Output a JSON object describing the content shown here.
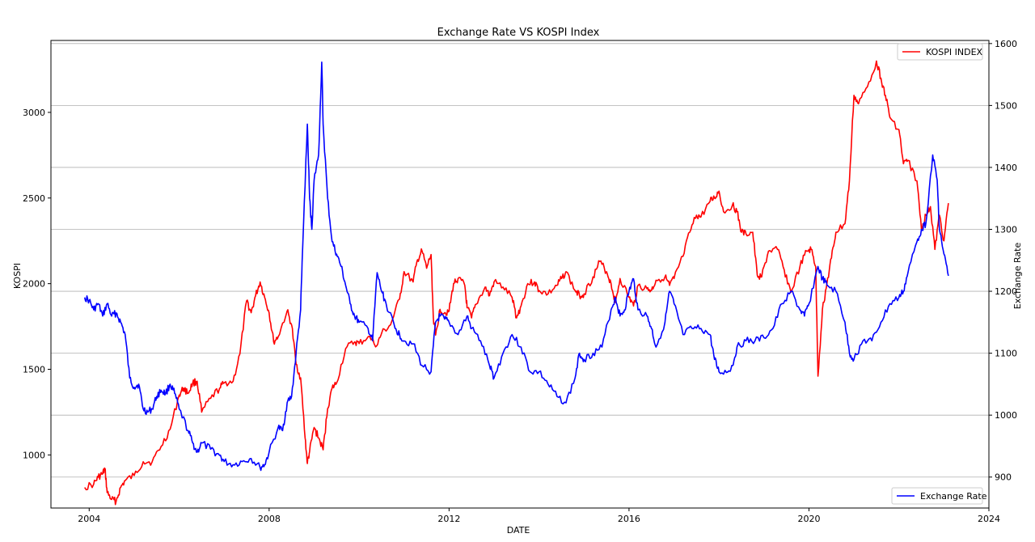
{
  "chart_data": {
    "type": "line",
    "title": "Exchange Rate VS KOSPI Index",
    "xlabel": "DATE",
    "ylabel_left": "KOSPI",
    "ylabel_right": "Exchange Rate",
    "xlim": [
      2003.15,
      2024.0
    ],
    "ylim_left": [
      690,
      3420
    ],
    "ylim_right": [
      850,
      1605
    ],
    "x_ticks": [
      "2004",
      "2008",
      "2012",
      "2016",
      "2020",
      "2024"
    ],
    "y_left_ticks": [
      "1000",
      "1500",
      "2000",
      "2500",
      "3000"
    ],
    "y_right_ticks": [
      "900",
      "1000",
      "1100",
      "1200",
      "1300",
      "1400",
      "1500",
      "1600"
    ],
    "grid": "horizontal lines at right-axis ticks",
    "colors": {
      "kospi": "#ff0000",
      "exchange": "#0000ff"
    },
    "series": [
      {
        "name": "KOSPI INDEX",
        "axis": "left",
        "color": "#ff0000",
        "legend_position": "top-right",
        "points": [
          [
            2003.9,
            810
          ],
          [
            2004.1,
            830
          ],
          [
            2004.2,
            870
          ],
          [
            2004.3,
            890
          ],
          [
            2004.35,
            920
          ],
          [
            2004.4,
            780
          ],
          [
            2004.5,
            740
          ],
          [
            2004.6,
            730
          ],
          [
            2004.7,
            810
          ],
          [
            2004.8,
            850
          ],
          [
            2005.0,
            880
          ],
          [
            2005.2,
            960
          ],
          [
            2005.4,
            960
          ],
          [
            2005.6,
            1050
          ],
          [
            2005.8,
            1150
          ],
          [
            2006.0,
            1350
          ],
          [
            2006.1,
            1390
          ],
          [
            2006.2,
            1360
          ],
          [
            2006.3,
            1420
          ],
          [
            2006.4,
            1430
          ],
          [
            2006.5,
            1250
          ],
          [
            2006.7,
            1330
          ],
          [
            2006.9,
            1390
          ],
          [
            2007.0,
            1420
          ],
          [
            2007.2,
            1430
          ],
          [
            2007.35,
            1590
          ],
          [
            2007.5,
            1900
          ],
          [
            2007.6,
            1830
          ],
          [
            2007.7,
            1930
          ],
          [
            2007.8,
            2010
          ],
          [
            2007.9,
            1920
          ],
          [
            2008.0,
            1830
          ],
          [
            2008.1,
            1660
          ],
          [
            2008.2,
            1690
          ],
          [
            2008.4,
            1840
          ],
          [
            2008.5,
            1760
          ],
          [
            2008.6,
            1530
          ],
          [
            2008.7,
            1450
          ],
          [
            2008.8,
            1100
          ],
          [
            2008.85,
            950
          ],
          [
            2008.9,
            1020
          ],
          [
            2009.0,
            1160
          ],
          [
            2009.1,
            1100
          ],
          [
            2009.2,
            1030
          ],
          [
            2009.3,
            1270
          ],
          [
            2009.4,
            1390
          ],
          [
            2009.5,
            1420
          ],
          [
            2009.7,
            1620
          ],
          [
            2009.9,
            1660
          ],
          [
            2010.0,
            1650
          ],
          [
            2010.2,
            1690
          ],
          [
            2010.4,
            1640
          ],
          [
            2010.5,
            1710
          ],
          [
            2010.7,
            1760
          ],
          [
            2010.9,
            1910
          ],
          [
            2011.0,
            2070
          ],
          [
            2011.2,
            2010
          ],
          [
            2011.3,
            2140
          ],
          [
            2011.4,
            2190
          ],
          [
            2011.5,
            2090
          ],
          [
            2011.6,
            2170
          ],
          [
            2011.65,
            1800
          ],
          [
            2011.7,
            1700
          ],
          [
            2011.8,
            1850
          ],
          [
            2011.9,
            1830
          ],
          [
            2012.0,
            1840
          ],
          [
            2012.1,
            2000
          ],
          [
            2012.2,
            2030
          ],
          [
            2012.35,
            1990
          ],
          [
            2012.4,
            1860
          ],
          [
            2012.5,
            1800
          ],
          [
            2012.6,
            1880
          ],
          [
            2012.8,
            1980
          ],
          [
            2012.9,
            1930
          ],
          [
            2013.0,
            2010
          ],
          [
            2013.2,
            1980
          ],
          [
            2013.4,
            1920
          ],
          [
            2013.5,
            1800
          ],
          [
            2013.6,
            1870
          ],
          [
            2013.75,
            2000
          ],
          [
            2013.9,
            2010
          ],
          [
            2014.0,
            1960
          ],
          [
            2014.2,
            1940
          ],
          [
            2014.4,
            1990
          ],
          [
            2014.5,
            2030
          ],
          [
            2014.6,
            2070
          ],
          [
            2014.8,
            1960
          ],
          [
            2014.9,
            1930
          ],
          [
            2015.0,
            1940
          ],
          [
            2015.2,
            2040
          ],
          [
            2015.35,
            2130
          ],
          [
            2015.5,
            2070
          ],
          [
            2015.6,
            2000
          ],
          [
            2015.7,
            1890
          ],
          [
            2015.8,
            2030
          ],
          [
            2016.0,
            1920
          ],
          [
            2016.1,
            1870
          ],
          [
            2016.2,
            1990
          ],
          [
            2016.4,
            1970
          ],
          [
            2016.5,
            1960
          ],
          [
            2016.6,
            2020
          ],
          [
            2016.8,
            2040
          ],
          [
            2016.9,
            1990
          ],
          [
            2017.0,
            2030
          ],
          [
            2017.2,
            2160
          ],
          [
            2017.35,
            2300
          ],
          [
            2017.5,
            2400
          ],
          [
            2017.6,
            2390
          ],
          [
            2017.8,
            2480
          ],
          [
            2017.9,
            2500
          ],
          [
            2018.0,
            2540
          ],
          [
            2018.1,
            2420
          ],
          [
            2018.3,
            2460
          ],
          [
            2018.4,
            2420
          ],
          [
            2018.5,
            2300
          ],
          [
            2018.6,
            2290
          ],
          [
            2018.75,
            2300
          ],
          [
            2018.85,
            2050
          ],
          [
            2018.95,
            2040
          ],
          [
            2019.1,
            2190
          ],
          [
            2019.3,
            2200
          ],
          [
            2019.45,
            2080
          ],
          [
            2019.6,
            1950
          ],
          [
            2019.8,
            2100
          ],
          [
            2019.95,
            2190
          ],
          [
            2020.05,
            2200
          ],
          [
            2020.15,
            2100
          ],
          [
            2020.2,
            1460
          ],
          [
            2020.3,
            1850
          ],
          [
            2020.4,
            2000
          ],
          [
            2020.5,
            2150
          ],
          [
            2020.6,
            2300
          ],
          [
            2020.8,
            2350
          ],
          [
            2020.9,
            2600
          ],
          [
            2021.0,
            3100
          ],
          [
            2021.1,
            3050
          ],
          [
            2021.3,
            3150
          ],
          [
            2021.5,
            3300
          ],
          [
            2021.6,
            3200
          ],
          [
            2021.7,
            3100
          ],
          [
            2021.8,
            2970
          ],
          [
            2022.0,
            2900
          ],
          [
            2022.1,
            2700
          ],
          [
            2022.2,
            2720
          ],
          [
            2022.4,
            2600
          ],
          [
            2022.5,
            2320
          ],
          [
            2022.6,
            2400
          ],
          [
            2022.7,
            2450
          ],
          [
            2022.8,
            2200
          ],
          [
            2022.9,
            2400
          ],
          [
            2023.0,
            2250
          ],
          [
            2023.1,
            2470
          ]
        ]
      },
      {
        "name": "Exchange Rate",
        "axis": "right",
        "color": "#0000ff",
        "legend_position": "bottom-right",
        "points": [
          [
            2003.9,
            1190
          ],
          [
            2004.0,
            1185
          ],
          [
            2004.1,
            1170
          ],
          [
            2004.2,
            1180
          ],
          [
            2004.3,
            1160
          ],
          [
            2004.4,
            1180
          ],
          [
            2004.5,
            1160
          ],
          [
            2004.6,
            1165
          ],
          [
            2004.7,
            1150
          ],
          [
            2004.8,
            1130
          ],
          [
            2004.9,
            1060
          ],
          [
            2005.0,
            1045
          ],
          [
            2005.1,
            1050
          ],
          [
            2005.2,
            1010
          ],
          [
            2005.3,
            1005
          ],
          [
            2005.4,
            1010
          ],
          [
            2005.5,
            1030
          ],
          [
            2005.6,
            1040
          ],
          [
            2005.7,
            1035
          ],
          [
            2005.8,
            1050
          ],
          [
            2005.9,
            1035
          ],
          [
            2006.0,
            1010
          ],
          [
            2006.2,
            975
          ],
          [
            2006.3,
            955
          ],
          [
            2006.4,
            940
          ],
          [
            2006.5,
            955
          ],
          [
            2006.7,
            945
          ],
          [
            2006.9,
            935
          ],
          [
            2007.0,
            925
          ],
          [
            2007.2,
            920
          ],
          [
            2007.4,
            925
          ],
          [
            2007.6,
            930
          ],
          [
            2007.8,
            915
          ],
          [
            2007.9,
            920
          ],
          [
            2008.0,
            940
          ],
          [
            2008.2,
            980
          ],
          [
            2008.3,
            975
          ],
          [
            2008.4,
            1020
          ],
          [
            2008.5,
            1030
          ],
          [
            2008.6,
            1100
          ],
          [
            2008.7,
            1170
          ],
          [
            2008.75,
            1280
          ],
          [
            2008.85,
            1470
          ],
          [
            2008.9,
            1350
          ],
          [
            2008.95,
            1300
          ],
          [
            2009.0,
            1380
          ],
          [
            2009.1,
            1420
          ],
          [
            2009.17,
            1570
          ],
          [
            2009.2,
            1470
          ],
          [
            2009.3,
            1350
          ],
          [
            2009.4,
            1280
          ],
          [
            2009.5,
            1260
          ],
          [
            2009.6,
            1240
          ],
          [
            2009.7,
            1210
          ],
          [
            2009.8,
            1180
          ],
          [
            2009.9,
            1160
          ],
          [
            2010.0,
            1150
          ],
          [
            2010.2,
            1140
          ],
          [
            2010.3,
            1120
          ],
          [
            2010.4,
            1230
          ],
          [
            2010.5,
            1200
          ],
          [
            2010.6,
            1180
          ],
          [
            2010.8,
            1140
          ],
          [
            2010.9,
            1130
          ],
          [
            2011.0,
            1120
          ],
          [
            2011.2,
            1115
          ],
          [
            2011.4,
            1080
          ],
          [
            2011.6,
            1070
          ],
          [
            2011.7,
            1150
          ],
          [
            2011.8,
            1160
          ],
          [
            2011.9,
            1155
          ],
          [
            2012.0,
            1150
          ],
          [
            2012.2,
            1130
          ],
          [
            2012.4,
            1160
          ],
          [
            2012.5,
            1140
          ],
          [
            2012.7,
            1120
          ],
          [
            2012.9,
            1080
          ],
          [
            2013.0,
            1060
          ],
          [
            2013.2,
            1100
          ],
          [
            2013.4,
            1130
          ],
          [
            2013.6,
            1110
          ],
          [
            2013.8,
            1070
          ],
          [
            2014.0,
            1070
          ],
          [
            2014.2,
            1050
          ],
          [
            2014.4,
            1030
          ],
          [
            2014.6,
            1020
          ],
          [
            2014.8,
            1060
          ],
          [
            2014.9,
            1100
          ],
          [
            2015.0,
            1090
          ],
          [
            2015.2,
            1100
          ],
          [
            2015.4,
            1110
          ],
          [
            2015.6,
            1170
          ],
          [
            2015.7,
            1190
          ],
          [
            2015.8,
            1160
          ],
          [
            2015.9,
            1170
          ],
          [
            2016.0,
            1200
          ],
          [
            2016.1,
            1220
          ],
          [
            2016.2,
            1170
          ],
          [
            2016.4,
            1160
          ],
          [
            2016.5,
            1140
          ],
          [
            2016.6,
            1110
          ],
          [
            2016.8,
            1150
          ],
          [
            2016.9,
            1200
          ],
          [
            2017.0,
            1180
          ],
          [
            2017.2,
            1130
          ],
          [
            2017.4,
            1140
          ],
          [
            2017.6,
            1140
          ],
          [
            2017.8,
            1130
          ],
          [
            2017.9,
            1090
          ],
          [
            2018.0,
            1070
          ],
          [
            2018.2,
            1070
          ],
          [
            2018.3,
            1080
          ],
          [
            2018.4,
            1110
          ],
          [
            2018.6,
            1120
          ],
          [
            2018.8,
            1120
          ],
          [
            2019.0,
            1125
          ],
          [
            2019.2,
            1140
          ],
          [
            2019.4,
            1180
          ],
          [
            2019.6,
            1200
          ],
          [
            2019.8,
            1170
          ],
          [
            2019.9,
            1160
          ],
          [
            2020.0,
            1180
          ],
          [
            2020.2,
            1240
          ],
          [
            2020.3,
            1220
          ],
          [
            2020.4,
            1210
          ],
          [
            2020.6,
            1200
          ],
          [
            2020.8,
            1150
          ],
          [
            2020.9,
            1100
          ],
          [
            2021.0,
            1090
          ],
          [
            2021.2,
            1120
          ],
          [
            2021.4,
            1120
          ],
          [
            2021.6,
            1150
          ],
          [
            2021.8,
            1180
          ],
          [
            2022.0,
            1190
          ],
          [
            2022.1,
            1200
          ],
          [
            2022.2,
            1230
          ],
          [
            2022.4,
            1280
          ],
          [
            2022.5,
            1300
          ],
          [
            2022.6,
            1310
          ],
          [
            2022.75,
            1420
          ],
          [
            2022.85,
            1380
          ],
          [
            2022.9,
            1300
          ],
          [
            2023.0,
            1260
          ],
          [
            2023.1,
            1225
          ]
        ]
      }
    ]
  }
}
